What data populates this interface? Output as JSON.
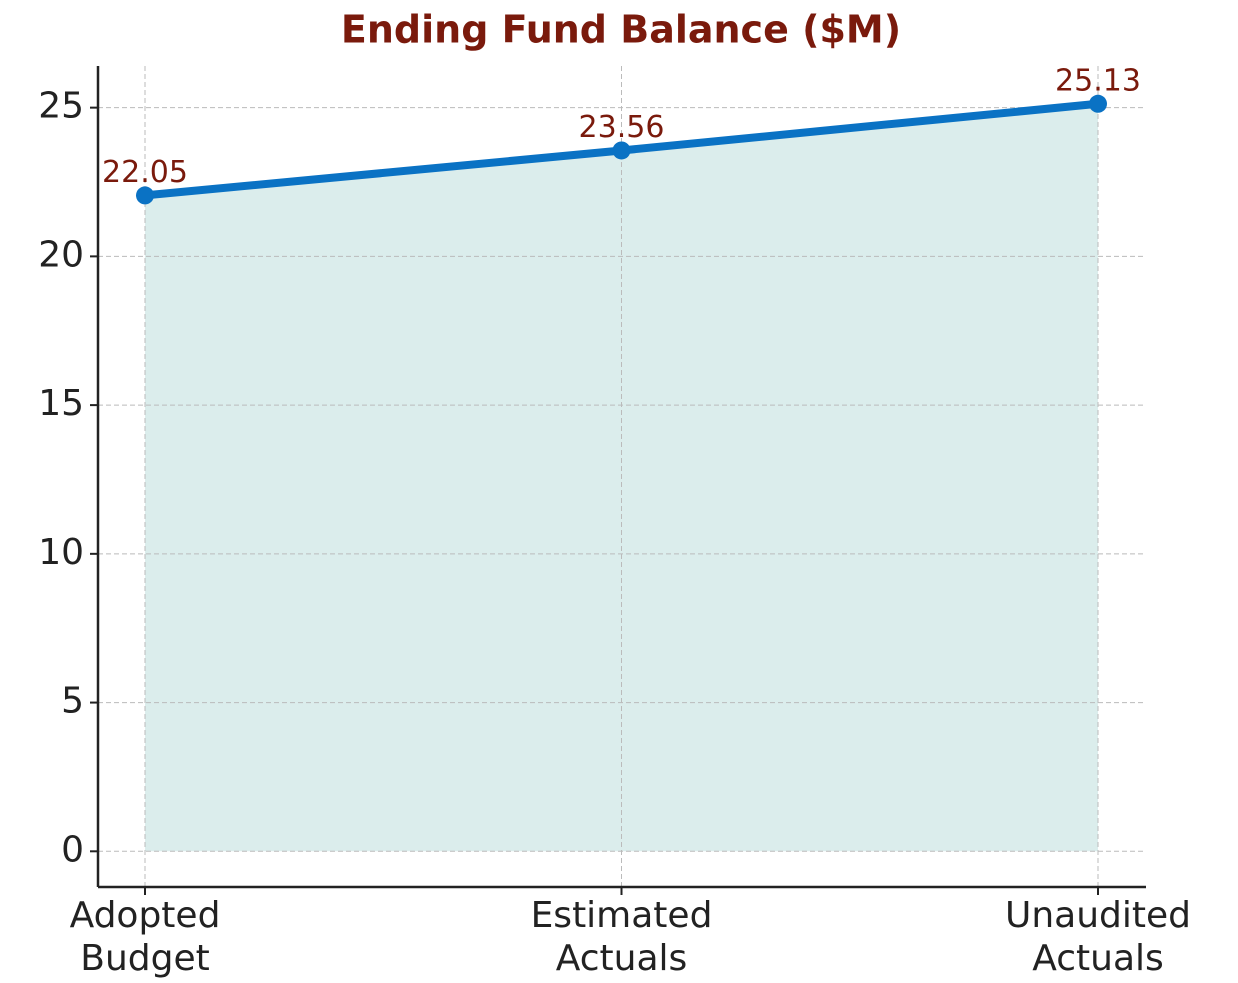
{
  "chart_data": {
    "type": "line",
    "title": "Ending Fund Balance ($M)",
    "categories": [
      "Adopted\nBudget",
      "Estimated\nActuals",
      "Unaudited\nActuals"
    ],
    "series": [
      {
        "name": "Ending Fund Balance",
        "color": "#0a72c4",
        "fill": "#dbedec",
        "values": [
          22.05,
          23.56,
          25.13
        ]
      }
    ],
    "ylim": [
      -1.2,
      26.4
    ],
    "yticks": [
      0,
      5,
      10,
      15,
      20,
      25
    ],
    "grid": true,
    "data_labels": true
  }
}
